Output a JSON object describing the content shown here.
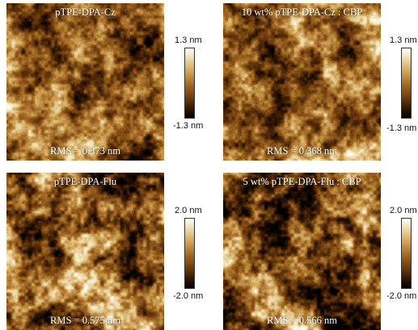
{
  "panels": [
    {
      "title": "pTPE-DPA-Cz",
      "rms": "RMS = 0.373 nm",
      "scale_max": "1.3 nm",
      "scale_min": "-1.3 nm",
      "seed": 11
    },
    {
      "title": "10 wt% pTPE-DPA-Cz : CBP",
      "rms": "RMS = 0.368 nm",
      "scale_max": "1.3 nm",
      "scale_min": "-1.3 nm",
      "seed": 23
    },
    {
      "title": "pTPE-DPA-Flu",
      "rms": "RMS = 0.575 nm",
      "scale_max": "2.0 nm",
      "scale_min": "-2.0 nm",
      "seed": 37
    },
    {
      "title": "5 wt% pTPE-DPA-Flu : CBP",
      "rms": "RMS = 0.566 nm",
      "scale_max": "2.0 nm",
      "scale_min": "-2.0 nm",
      "seed": 53
    }
  ],
  "colormap": [
    "#000000",
    "#2e1402",
    "#6b3a0c",
    "#a36a24",
    "#d4a85c",
    "#f0e2b8",
    "#fffef8"
  ]
}
